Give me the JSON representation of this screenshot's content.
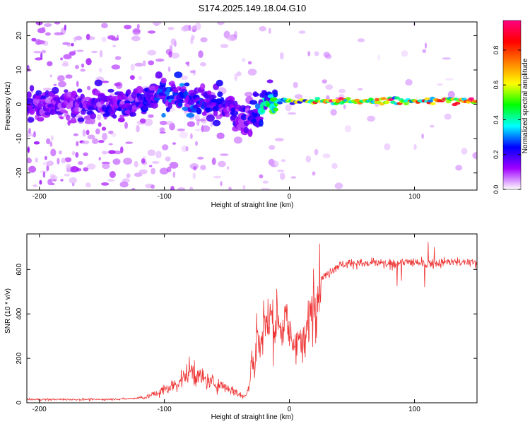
{
  "figure": {
    "title": "S174.2025.149.18.04.G10"
  },
  "chart_data": [
    {
      "type": "heatmap",
      "title": "S174.2025.149.18.04.G10",
      "xlabel": "Height of straight line (km)",
      "ylabel": "Frequency (Hz)",
      "xlim": [
        -210,
        150
      ],
      "ylim": [
        -25,
        24
      ],
      "x_ticks": [
        -200,
        -100,
        0,
        100
      ],
      "y_ticks": [
        -20,
        -10,
        0,
        10,
        20
      ],
      "x_tick_labels": [
        "-200",
        "-100",
        "0",
        "100"
      ],
      "y_tick_labels": [
        "-20",
        "-10",
        "0",
        "10",
        "20"
      ],
      "colorbar": {
        "label": "Normalized spectral amplitude",
        "range": [
          0,
          0.97
        ],
        "ticks": [
          0.0,
          0.2,
          0.4,
          0.6,
          0.8
        ],
        "tick_labels": [
          "0.0",
          "0.2",
          "0.4",
          "0.6",
          "0.8"
        ],
        "colormap": [
          "#ffffff",
          "#a000ff",
          "#0000ff",
          "#00ffff",
          "#00ff00",
          "#ffff00",
          "#ff8000",
          "#ff0000",
          "#ff0080"
        ]
      },
      "ridge": {
        "note_x": [
          -205,
          -180,
          -150,
          -120,
          -100,
          -80,
          -60,
          -40,
          -30,
          -20,
          -10,
          0,
          20,
          50,
          80,
          100,
          120,
          150
        ],
        "frequency": [
          1,
          0,
          0,
          1,
          3,
          2,
          0,
          -3,
          -4,
          1,
          1,
          1,
          1,
          1,
          1,
          1,
          1,
          1
        ],
        "amplitude": [
          0.18,
          0.15,
          0.18,
          0.2,
          0.25,
          0.25,
          0.2,
          0.18,
          0.2,
          0.35,
          0.45,
          0.5,
          0.6,
          0.65,
          0.65,
          0.7,
          0.75,
          0.85
        ]
      }
    },
    {
      "type": "line",
      "xlabel": "Height of straight line (km)",
      "ylabel": "SNR (10 * v/v)",
      "xlim": [
        -210,
        150
      ],
      "ylim": [
        0,
        760
      ],
      "x_ticks": [
        -200,
        -100,
        0,
        100
      ],
      "y_ticks": [
        0,
        200,
        400,
        600
      ],
      "x_tick_labels": [
        "-200",
        "-100",
        "0",
        "100"
      ],
      "y_tick_labels": [
        "0",
        "200",
        "400",
        "600"
      ],
      "color": "#ee3333",
      "series": [
        {
          "x": [
            -210,
            -190,
            -170,
            -150,
            -130,
            -115,
            -105,
            -95,
            -85,
            -78,
            -72,
            -65,
            -58,
            -50,
            -42,
            -36,
            -32,
            -30,
            -28,
            -26,
            -24,
            -22,
            -20,
            -18,
            -15,
            -12,
            -9,
            -6,
            -3,
            0,
            3,
            6,
            9,
            12,
            15,
            18,
            22,
            26,
            30,
            35,
            40,
            50,
            60,
            70,
            80,
            90,
            100,
            110,
            120,
            130,
            140,
            150
          ],
          "y": [
            15,
            15,
            15,
            15,
            18,
            25,
            45,
            70,
            110,
            150,
            115,
            95,
            85,
            70,
            45,
            25,
            80,
            220,
            120,
            340,
            230,
            320,
            390,
            330,
            390,
            350,
            390,
            330,
            370,
            300,
            260,
            310,
            260,
            250,
            360,
            450,
            520,
            560,
            575,
            605,
            620,
            630,
            625,
            630,
            620,
            635,
            630,
            625,
            630,
            635,
            630,
            630
          ]
        }
      ]
    }
  ]
}
